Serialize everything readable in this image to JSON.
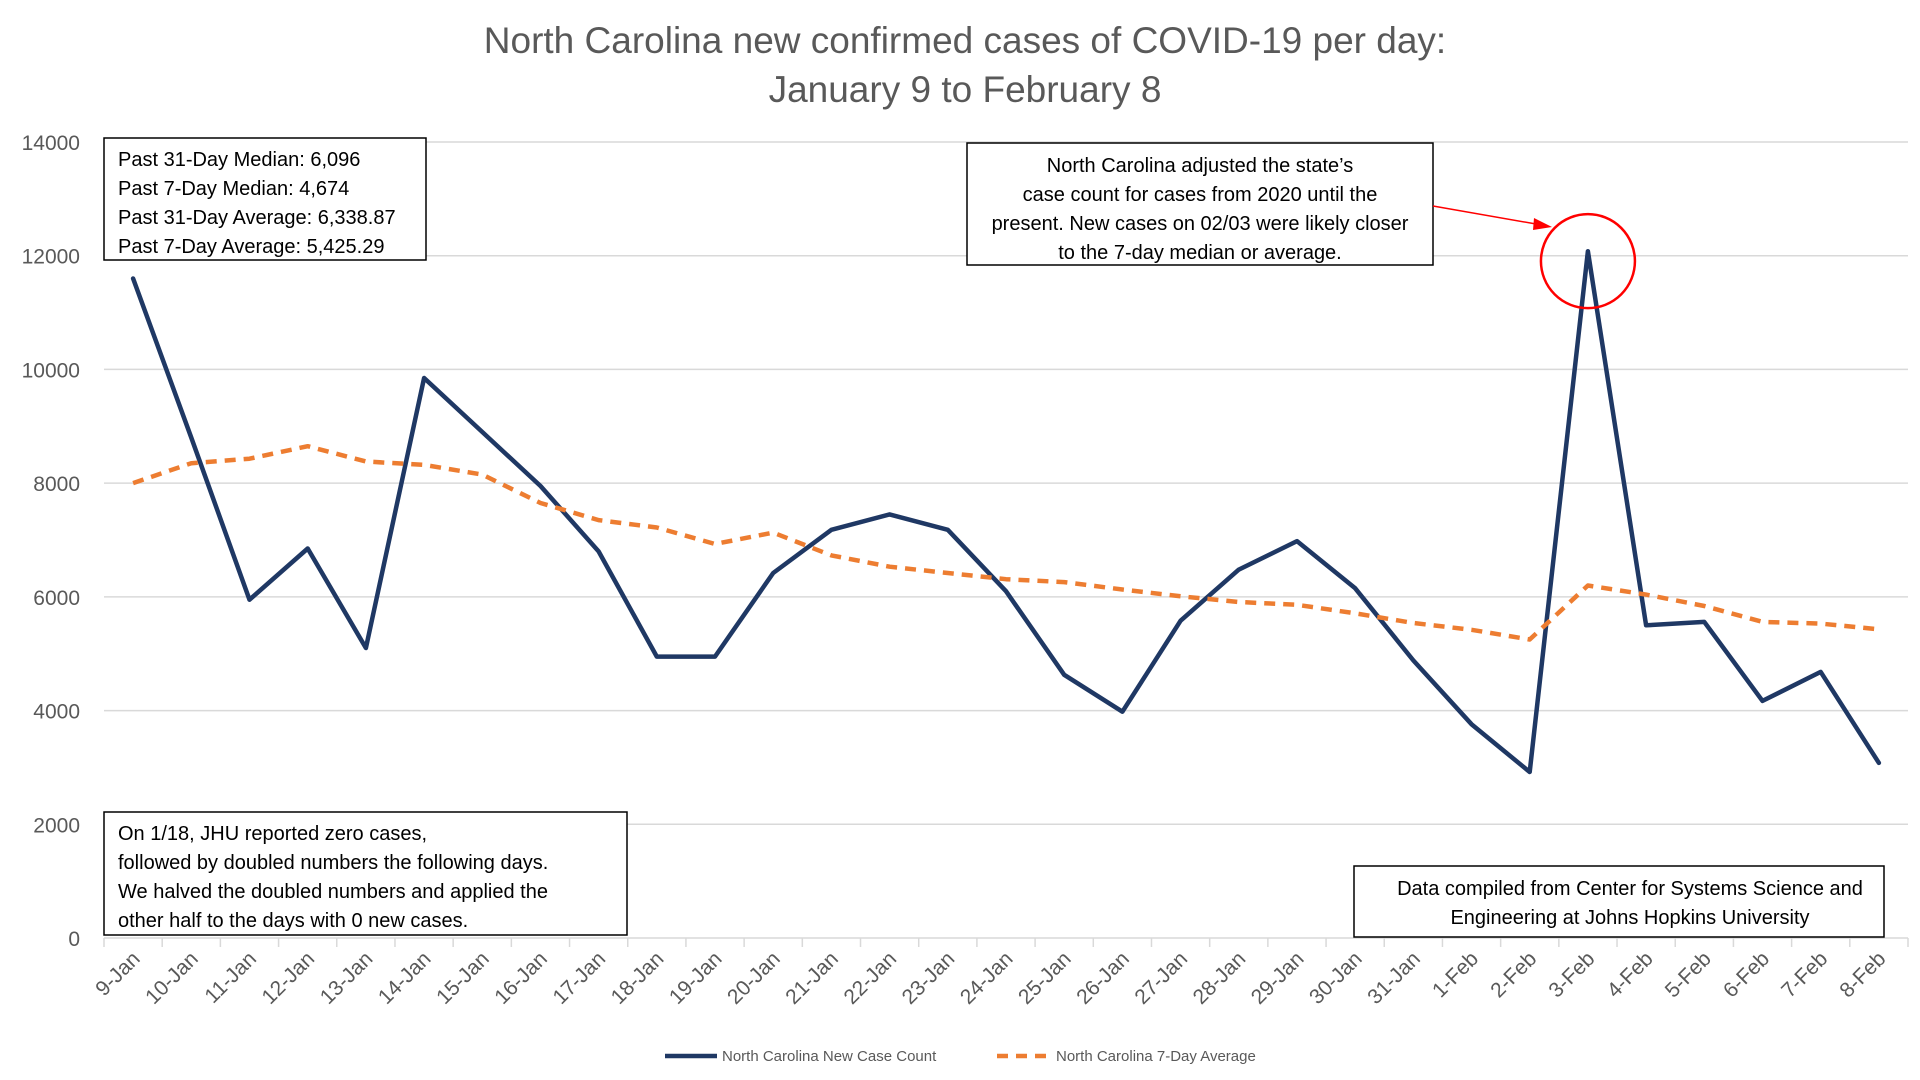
{
  "chart_data": {
    "type": "line",
    "title": "North Carolina new confirmed cases of COVID-19 per day:",
    "subtitle": "January 9 to February 8",
    "categories": [
      "9-Jan",
      "10-Jan",
      "11-Jan",
      "12-Jan",
      "13-Jan",
      "14-Jan",
      "15-Jan",
      "16-Jan",
      "17-Jan",
      "18-Jan",
      "19-Jan",
      "20-Jan",
      "21-Jan",
      "22-Jan",
      "23-Jan",
      "24-Jan",
      "25-Jan",
      "26-Jan",
      "27-Jan",
      "28-Jan",
      "29-Jan",
      "30-Jan",
      "31-Jan",
      "1-Feb",
      "2-Feb",
      "3-Feb",
      "4-Feb",
      "5-Feb",
      "6-Feb",
      "7-Feb",
      "8-Feb"
    ],
    "ylim": [
      0,
      14000
    ],
    "yticks": [
      "0",
      "2000",
      "4000",
      "6000",
      "8000",
      "10000",
      "12000",
      "14000"
    ],
    "grid": true,
    "legend_position": "bottom",
    "series": [
      {
        "name": "North Carolina New Case Count",
        "color": "#1f3864",
        "style": "solid",
        "values": [
          11600,
          8800,
          5950,
          6850,
          5100,
          9850,
          8900,
          7950,
          6800,
          4950,
          4950,
          6420,
          7180,
          7450,
          7180,
          6100,
          4630,
          3980,
          5580,
          6480,
          6980,
          6150,
          4880,
          3760,
          2920,
          12080,
          5500,
          5560,
          4170,
          4680,
          3080
        ]
      },
      {
        "name": "North Carolina 7-Day Average",
        "color": "#ed7d31",
        "style": "dashed",
        "values": [
          8000,
          8350,
          8430,
          8650,
          8380,
          8320,
          8150,
          7650,
          7350,
          7220,
          6930,
          7130,
          6730,
          6530,
          6420,
          6310,
          6260,
          6130,
          6010,
          5910,
          5860,
          5710,
          5540,
          5420,
          5250,
          6200,
          6040,
          5840,
          5560,
          5530,
          5430
        ]
      }
    ],
    "annotations": {
      "stats_box": [
        "Past 31-Day Median: 6,096",
        "Past 7-Day Median: 4,674",
        "Past 31-Day Average: 6,338.87",
        "Past 7-Day Average: 5,425.29"
      ],
      "adjustment_note": [
        "North Carolina adjusted the state’s",
        "case count for cases from 2020 until the",
        "present. New cases on 02/03 were likely closer",
        "to the 7-day median or average."
      ],
      "jhu_note": [
        "On 1/18, JHU reported zero cases,",
        "followed by doubled numbers the following days.",
        "We halved the doubled numbers and applied the",
        "other half to the days with 0 new cases."
      ],
      "source_note": [
        "Data compiled from Center for Systems Science and",
        "Engineering at Johns Hopkins University"
      ],
      "highlight_category": "3-Feb",
      "highlight_color": "#ff0000"
    }
  }
}
